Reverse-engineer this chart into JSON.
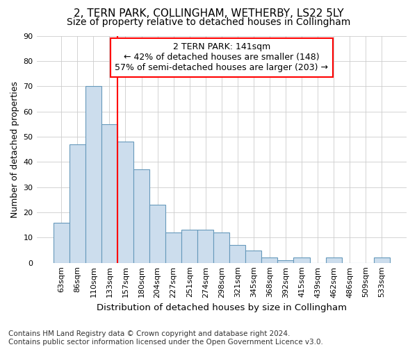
{
  "title": "2, TERN PARK, COLLINGHAM, WETHERBY, LS22 5LY",
  "subtitle": "Size of property relative to detached houses in Collingham",
  "xlabel": "Distribution of detached houses by size in Collingham",
  "ylabel": "Number of detached properties",
  "categories": [
    "63sqm",
    "86sqm",
    "110sqm",
    "133sqm",
    "157sqm",
    "180sqm",
    "204sqm",
    "227sqm",
    "251sqm",
    "274sqm",
    "298sqm",
    "321sqm",
    "345sqm",
    "368sqm",
    "392sqm",
    "415sqm",
    "439sqm",
    "462sqm",
    "486sqm",
    "509sqm",
    "533sqm"
  ],
  "values": [
    16,
    47,
    70,
    55,
    48,
    37,
    23,
    12,
    13,
    13,
    12,
    7,
    5,
    2,
    1,
    2,
    0,
    2,
    0,
    0,
    2
  ],
  "bar_color": "#ccdded",
  "bar_edge_color": "#6699bb",
  "vline_color": "red",
  "vline_x_index": 3,
  "annotation_text": "2 TERN PARK: 141sqm\n← 42% of detached houses are smaller (148)\n57% of semi-detached houses are larger (203) →",
  "annotation_box_color": "white",
  "annotation_box_edge": "red",
  "ylim": [
    0,
    90
  ],
  "yticks": [
    0,
    10,
    20,
    30,
    40,
    50,
    60,
    70,
    80,
    90
  ],
  "grid_color": "#cccccc",
  "bg_color": "white",
  "footer": "Contains HM Land Registry data © Crown copyright and database right 2024.\nContains public sector information licensed under the Open Government Licence v3.0.",
  "title_fontsize": 11,
  "subtitle_fontsize": 10,
  "xlabel_fontsize": 9.5,
  "ylabel_fontsize": 9,
  "tick_fontsize": 8,
  "annotation_fontsize": 9,
  "footer_fontsize": 7.5
}
